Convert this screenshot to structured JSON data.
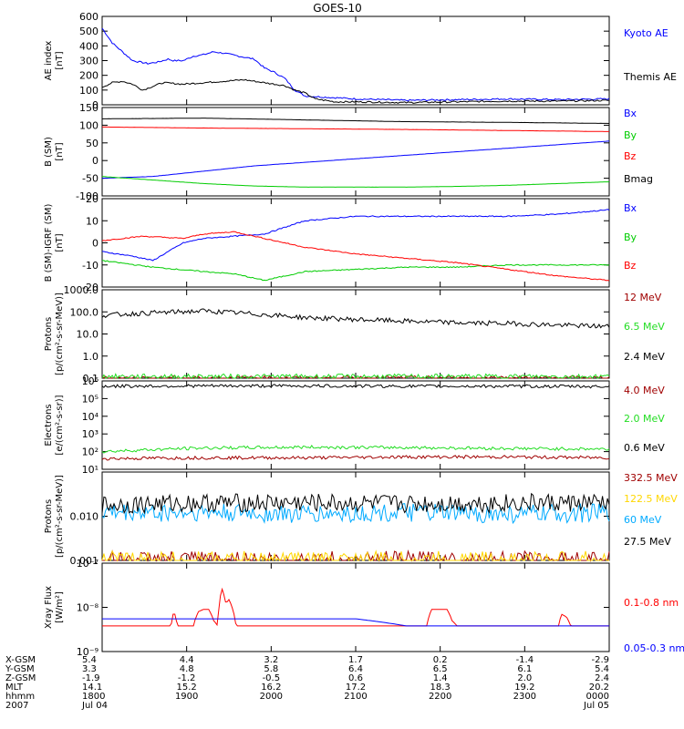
{
  "title": "GOES-10",
  "colors": {
    "black": "#000000",
    "blue": "#0000ff",
    "red": "#ff0000",
    "green": "#00cc00",
    "darkred": "#a00000",
    "brightgreen": "#22dd22",
    "yellow": "#ffd700",
    "cyan": "#00aaff"
  },
  "chart_data": [
    {
      "type": "line",
      "id": "ae",
      "ylabel": [
        "AE index",
        "[nT]"
      ],
      "ylim": [
        0,
        600
      ],
      "yticks": [
        "600",
        "500",
        "400",
        "300",
        "200",
        "100",
        "0"
      ],
      "series": [
        {
          "name": "Kyoto AE",
          "color": "blue",
          "x": [
            0,
            0.04,
            0.1,
            0.2,
            0.3,
            0.45,
            0.55,
            0.65,
            0.7,
            0.8,
            0.9,
            1.0,
            1.1,
            1.2,
            1.35,
            1.5,
            1.6,
            1.7,
            1.75,
            1.8,
            1.9,
            2.0,
            2.5,
            3.0,
            3.5,
            4.0,
            4.5,
            5.0
          ],
          "y": [
            520,
            480,
            420,
            360,
            300,
            280,
            290,
            310,
            300,
            300,
            330,
            340,
            360,
            350,
            330,
            310,
            250,
            220,
            200,
            180,
            100,
            60,
            40,
            30,
            35,
            40,
            35,
            40
          ]
        },
        {
          "name": "Themis AE",
          "color": "black",
          "x": [
            0,
            0.1,
            0.2,
            0.3,
            0.4,
            0.6,
            0.8,
            1.0,
            1.2,
            1.4,
            1.6,
            1.8,
            1.9,
            2.0,
            2.1,
            2.3,
            2.5,
            3.0,
            3.5,
            4.0,
            4.5,
            5.0
          ],
          "y": [
            120,
            150,
            160,
            140,
            100,
            150,
            140,
            150,
            160,
            170,
            150,
            130,
            100,
            80,
            40,
            20,
            20,
            15,
            20,
            25,
            25,
            30
          ]
        }
      ]
    },
    {
      "type": "line",
      "id": "bsm",
      "ylabel": [
        "B (SM)",
        "[nT]"
      ],
      "ylim": [
        -100,
        150
      ],
      "yticks": [
        "150",
        "100",
        "50",
        "0",
        "-50",
        "-100"
      ],
      "series": [
        {
          "name": "Bx",
          "color": "blue",
          "x": [
            0,
            0.5,
            1.0,
            1.5,
            2.0,
            2.5,
            3.0,
            3.5,
            4.0,
            4.5,
            5.0
          ],
          "y": [
            -50,
            -45,
            -30,
            -15,
            -5,
            5,
            15,
            25,
            35,
            45,
            55
          ]
        },
        {
          "name": "By",
          "color": "green",
          "x": [
            0,
            0.5,
            1.0,
            1.5,
            2.0,
            2.5,
            3.0,
            3.5,
            4.0,
            4.5,
            5.0
          ],
          "y": [
            -45,
            -55,
            -65,
            -72,
            -75,
            -75,
            -75,
            -73,
            -70,
            -65,
            -60
          ]
        },
        {
          "name": "Bz",
          "color": "red",
          "x": [
            0,
            1.0,
            2.0,
            3.0,
            4.0,
            5.0
          ],
          "y": [
            95,
            92,
            90,
            88,
            85,
            82
          ]
        },
        {
          "name": "Bmag",
          "color": "black",
          "x": [
            0,
            1.0,
            2.0,
            3.0,
            4.0,
            5.0
          ],
          "y": [
            118,
            120,
            115,
            110,
            108,
            105
          ]
        }
      ]
    },
    {
      "type": "line",
      "id": "bigrf",
      "ylabel": [
        "B (SM)-IGRF (SM)",
        "[nT]"
      ],
      "ylim": [
        -20,
        20
      ],
      "yticks": [
        "20",
        "10",
        "0",
        "-10",
        "-20"
      ],
      "series": [
        {
          "name": "Bx",
          "color": "blue",
          "x": [
            0,
            0.3,
            0.5,
            0.8,
            1.0,
            1.3,
            1.6,
            1.8,
            2.0,
            2.5,
            3.0,
            3.5,
            4.0,
            4.5,
            5.0
          ],
          "y": [
            -4,
            -6,
            -8,
            0,
            2,
            3,
            4,
            7,
            10,
            12,
            12,
            12,
            12,
            13,
            15
          ]
        },
        {
          "name": "By",
          "color": "green",
          "x": [
            0,
            0.5,
            1.0,
            1.3,
            1.6,
            2.0,
            2.5,
            3.0,
            3.5,
            4.0,
            4.5,
            5.0
          ],
          "y": [
            -8,
            -11,
            -13,
            -14,
            -17,
            -13,
            -12,
            -11,
            -11,
            -10,
            -10,
            -10
          ]
        },
        {
          "name": "Bz",
          "color": "red",
          "x": [
            0,
            0.4,
            0.8,
            1.0,
            1.3,
            1.6,
            2.0,
            2.5,
            3.0,
            3.5,
            4.0,
            4.5,
            5.0
          ],
          "y": [
            1,
            3,
            2,
            4,
            5,
            2,
            -2,
            -5,
            -7,
            -9,
            -12,
            -15,
            -17
          ]
        }
      ]
    },
    {
      "type": "line",
      "id": "protons1",
      "yscale": "log",
      "ylabel": [
        "Protons",
        "[p/(cm²-s-sr-MeV)]"
      ],
      "ylim": [
        0.1,
        1000
      ],
      "yticks": [
        "1000.0",
        "100.0",
        "10.0",
        "1.0",
        "0.1"
      ],
      "series": [
        {
          "name": "12 MeV",
          "color": "darkred",
          "x": [
            0,
            5
          ],
          "y": [
            0.1,
            0.1
          ]
        },
        {
          "name": "6.5 MeV",
          "color": "brightgreen",
          "x": [
            0,
            5
          ],
          "y": [
            0.12,
            0.12
          ]
        },
        {
          "name": "2.4 MeV",
          "color": "black",
          "x": [
            0,
            0.5,
            1.0,
            1.5,
            2.0,
            2.5,
            3.0,
            3.5,
            4.0,
            4.5,
            5.0
          ],
          "y": [
            70,
            90,
            110,
            80,
            55,
            45,
            38,
            32,
            30,
            25,
            22
          ]
        }
      ]
    },
    {
      "type": "line",
      "id": "electrons",
      "yscale": "log",
      "ylabel": [
        "Electrons",
        "[e/(cm²-s-sr)]"
      ],
      "ylim": [
        10,
        1000000
      ],
      "yticks": [
        "10⁶",
        "10⁵",
        "10⁴",
        "10³",
        "10²",
        "10¹"
      ],
      "series": [
        {
          "name": "4.0 MeV",
          "color": "darkred",
          "x": [
            0,
            1,
            2,
            3,
            4,
            5
          ],
          "y": [
            40,
            45,
            45,
            50,
            50,
            45
          ]
        },
        {
          "name": "2.0 MeV",
          "color": "brightgreen",
          "x": [
            0,
            1,
            2,
            3,
            4,
            5
          ],
          "y": [
            100,
            160,
            180,
            170,
            150,
            140
          ]
        },
        {
          "name": "0.6 MeV",
          "color": "black",
          "x": [
            0,
            1,
            2,
            3,
            4,
            5
          ],
          "y": [
            500000,
            520000,
            520000,
            500000,
            500000,
            480000
          ]
        }
      ]
    },
    {
      "type": "line",
      "id": "protons2",
      "yscale": "log",
      "ylabel": [
        "Protons",
        "[p/(cm²-s-sr-MeV)]"
      ],
      "ylim": [
        0.001,
        0.1
      ],
      "yticks": [
        "0.010",
        "0.001"
      ],
      "series": [
        {
          "name": "332.5 MeV",
          "color": "darkred",
          "x": [
            0,
            5
          ],
          "y": [
            0.001,
            0.001
          ]
        },
        {
          "name": "122.5 MeV",
          "color": "yellow",
          "x": [
            0,
            5
          ],
          "y": [
            0.001,
            0.001
          ]
        },
        {
          "name": "60 MeV",
          "color": "cyan",
          "x": [
            0,
            1,
            2,
            3,
            4,
            5
          ],
          "y": [
            0.012,
            0.012,
            0.011,
            0.012,
            0.011,
            0.012
          ]
        },
        {
          "name": "27.5 MeV",
          "color": "black",
          "x": [
            0,
            1,
            2,
            3,
            4,
            5
          ],
          "y": [
            0.018,
            0.02,
            0.02,
            0.019,
            0.02,
            0.02
          ]
        }
      ]
    },
    {
      "type": "line",
      "id": "xray",
      "yscale": "log",
      "ylabel": [
        "Xray Flux",
        "[W/m²]"
      ],
      "ylim": [
        1e-09,
        1e-07
      ],
      "yticks": [
        "10⁻⁷",
        "10⁻⁸",
        "10⁻⁹"
      ],
      "series": [
        {
          "name": "0.1-0.8 nm",
          "color": "red",
          "x": [
            0,
            0.68,
            0.7,
            0.72,
            0.74,
            0.9,
            0.95,
            1.0,
            1.05,
            1.1,
            1.14,
            1.16,
            1.18,
            1.22,
            1.25,
            1.3,
            1.32,
            1.35,
            3.2,
            3.25,
            3.4,
            3.45,
            3.5,
            4.5,
            4.53,
            4.58,
            4.62,
            5.0
          ],
          "y": [
            3.8e-09,
            3.8e-09,
            7e-09,
            7e-09,
            3.8e-09,
            3.8e-09,
            8e-09,
            9e-09,
            9e-09,
            5e-09,
            3.8e-09,
            1.4e-08,
            2.7e-08,
            1.2e-08,
            1.5e-08,
            7e-09,
            3.8e-09,
            3.8e-09,
            3.8e-09,
            9e-09,
            9e-09,
            5e-09,
            3.8e-09,
            3.8e-09,
            7e-09,
            6e-09,
            3.8e-09,
            3.8e-09
          ]
        },
        {
          "name": "0.05-0.3 nm",
          "color": "blue",
          "x": [
            0,
            2.5,
            3.0,
            5.0
          ],
          "y": [
            5.5e-09,
            5.5e-09,
            3.8e-09,
            3.8e-09
          ]
        }
      ]
    }
  ],
  "xaxis": {
    "range": [
      0,
      5
    ],
    "row_labels": [
      "X-GSM",
      "Y-GSM",
      "Z-GSM",
      "MLT",
      "hhmm",
      "2007"
    ],
    "columns": [
      {
        "x": 0,
        "values": [
          "5.4",
          "3.3",
          "-1.9",
          "14.1",
          "1800",
          "Jul 04"
        ]
      },
      {
        "x": 1,
        "values": [
          "4.4",
          "4.8",
          "-1.2",
          "15.2",
          "1900",
          ""
        ]
      },
      {
        "x": 2,
        "values": [
          "3.2",
          "5.8",
          "-0.5",
          "16.2",
          "2000",
          ""
        ]
      },
      {
        "x": 3,
        "values": [
          "1.7",
          "6.4",
          "0.6",
          "17.2",
          "2100",
          ""
        ]
      },
      {
        "x": 4,
        "values": [
          "0.2",
          "6.5",
          "1.4",
          "18.3",
          "2200",
          ""
        ]
      },
      {
        "x": 5,
        "values": [
          "-1.4",
          "6.1",
          "2.0",
          "19.2",
          "2300",
          ""
        ]
      },
      {
        "x": 6,
        "values": [
          "-2.9",
          "5.4",
          "2.4",
          "20.2",
          "0000",
          "Jul 05"
        ]
      }
    ]
  }
}
